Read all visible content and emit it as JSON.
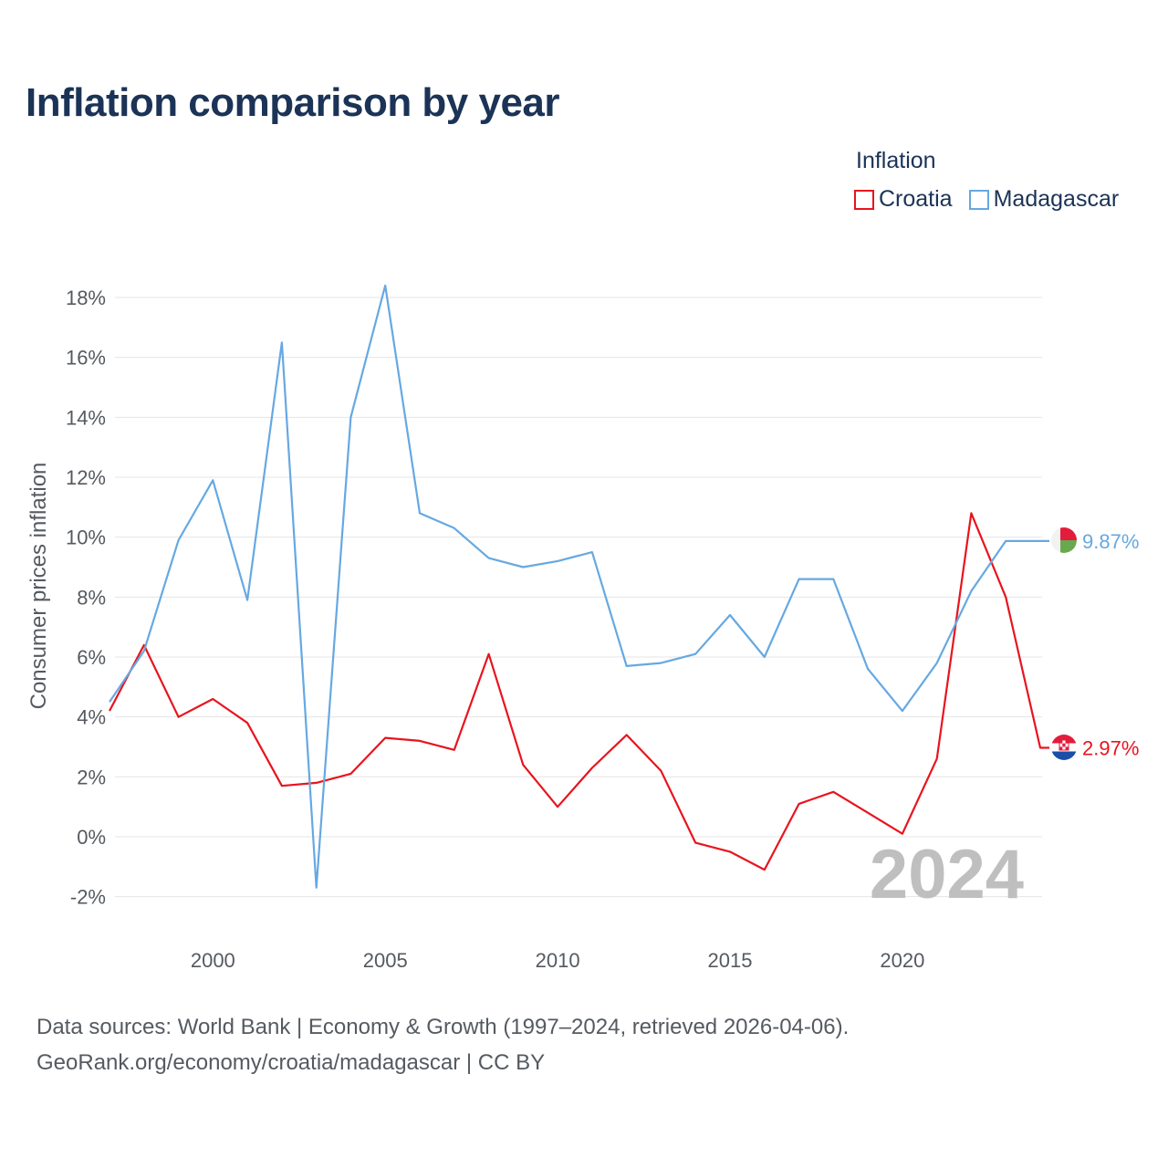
{
  "title": "Inflation comparison by year",
  "legend": {
    "title": "Inflation",
    "items": [
      {
        "name": "Croatia",
        "color": "#e8141e"
      },
      {
        "name": "Madagascar",
        "color": "#66a8e2"
      }
    ]
  },
  "source": {
    "line1": "Data sources: World Bank | Economy & Growth (1997–2024, retrieved 2026-04-06).",
    "line2": "GeoRank.org/economy/croatia/madagascar | CC BY"
  },
  "chart_data": {
    "type": "line",
    "title": "Inflation comparison by year",
    "xlabel": "",
    "ylabel": "Consumer prices inflation",
    "xlim": [
      1997,
      2024
    ],
    "ylim": [
      -3,
      19
    ],
    "grid": true,
    "legend_position": "top-right",
    "watermark": "2024",
    "x_ticks": [
      2000,
      2005,
      2010,
      2015,
      2020
    ],
    "y_ticks": [
      {
        "value": -2,
        "label": "-2%"
      },
      {
        "value": 0,
        "label": "0%"
      },
      {
        "value": 2,
        "label": "2%"
      },
      {
        "value": 4,
        "label": "4%"
      },
      {
        "value": 6,
        "label": "6%"
      },
      {
        "value": 8,
        "label": "8%"
      },
      {
        "value": 10,
        "label": "10%"
      },
      {
        "value": 12,
        "label": "12%"
      },
      {
        "value": 14,
        "label": "14%"
      },
      {
        "value": 16,
        "label": "16%"
      },
      {
        "value": 18,
        "label": "18%"
      }
    ],
    "x": [
      1997,
      1998,
      1999,
      2000,
      2001,
      2002,
      2003,
      2004,
      2005,
      2006,
      2007,
      2008,
      2009,
      2010,
      2011,
      2012,
      2013,
      2014,
      2015,
      2016,
      2017,
      2018,
      2019,
      2020,
      2021,
      2022,
      2023,
      2024
    ],
    "series": [
      {
        "name": "Croatia",
        "color": "#e8141e",
        "flag": "croatia-flag",
        "end_label": "2.97%",
        "values": [
          4.2,
          6.4,
          4.0,
          4.6,
          3.8,
          1.7,
          1.8,
          2.1,
          3.3,
          3.2,
          2.9,
          6.1,
          2.4,
          1.0,
          2.3,
          3.4,
          2.2,
          -0.2,
          -0.5,
          -1.1,
          1.1,
          1.5,
          0.8,
          0.1,
          2.6,
          10.8,
          8.0,
          2.97
        ]
      },
      {
        "name": "Madagascar",
        "color": "#66a8e2",
        "flag": "madagascar-flag",
        "end_label": "9.87%",
        "values": [
          4.5,
          6.2,
          9.9,
          11.9,
          7.9,
          16.5,
          -1.7,
          14.0,
          18.4,
          10.8,
          10.3,
          9.3,
          9.0,
          9.2,
          9.5,
          5.7,
          5.8,
          6.1,
          7.4,
          6.0,
          8.6,
          8.6,
          5.6,
          4.2,
          5.8,
          8.2,
          9.87,
          9.87
        ]
      }
    ]
  }
}
